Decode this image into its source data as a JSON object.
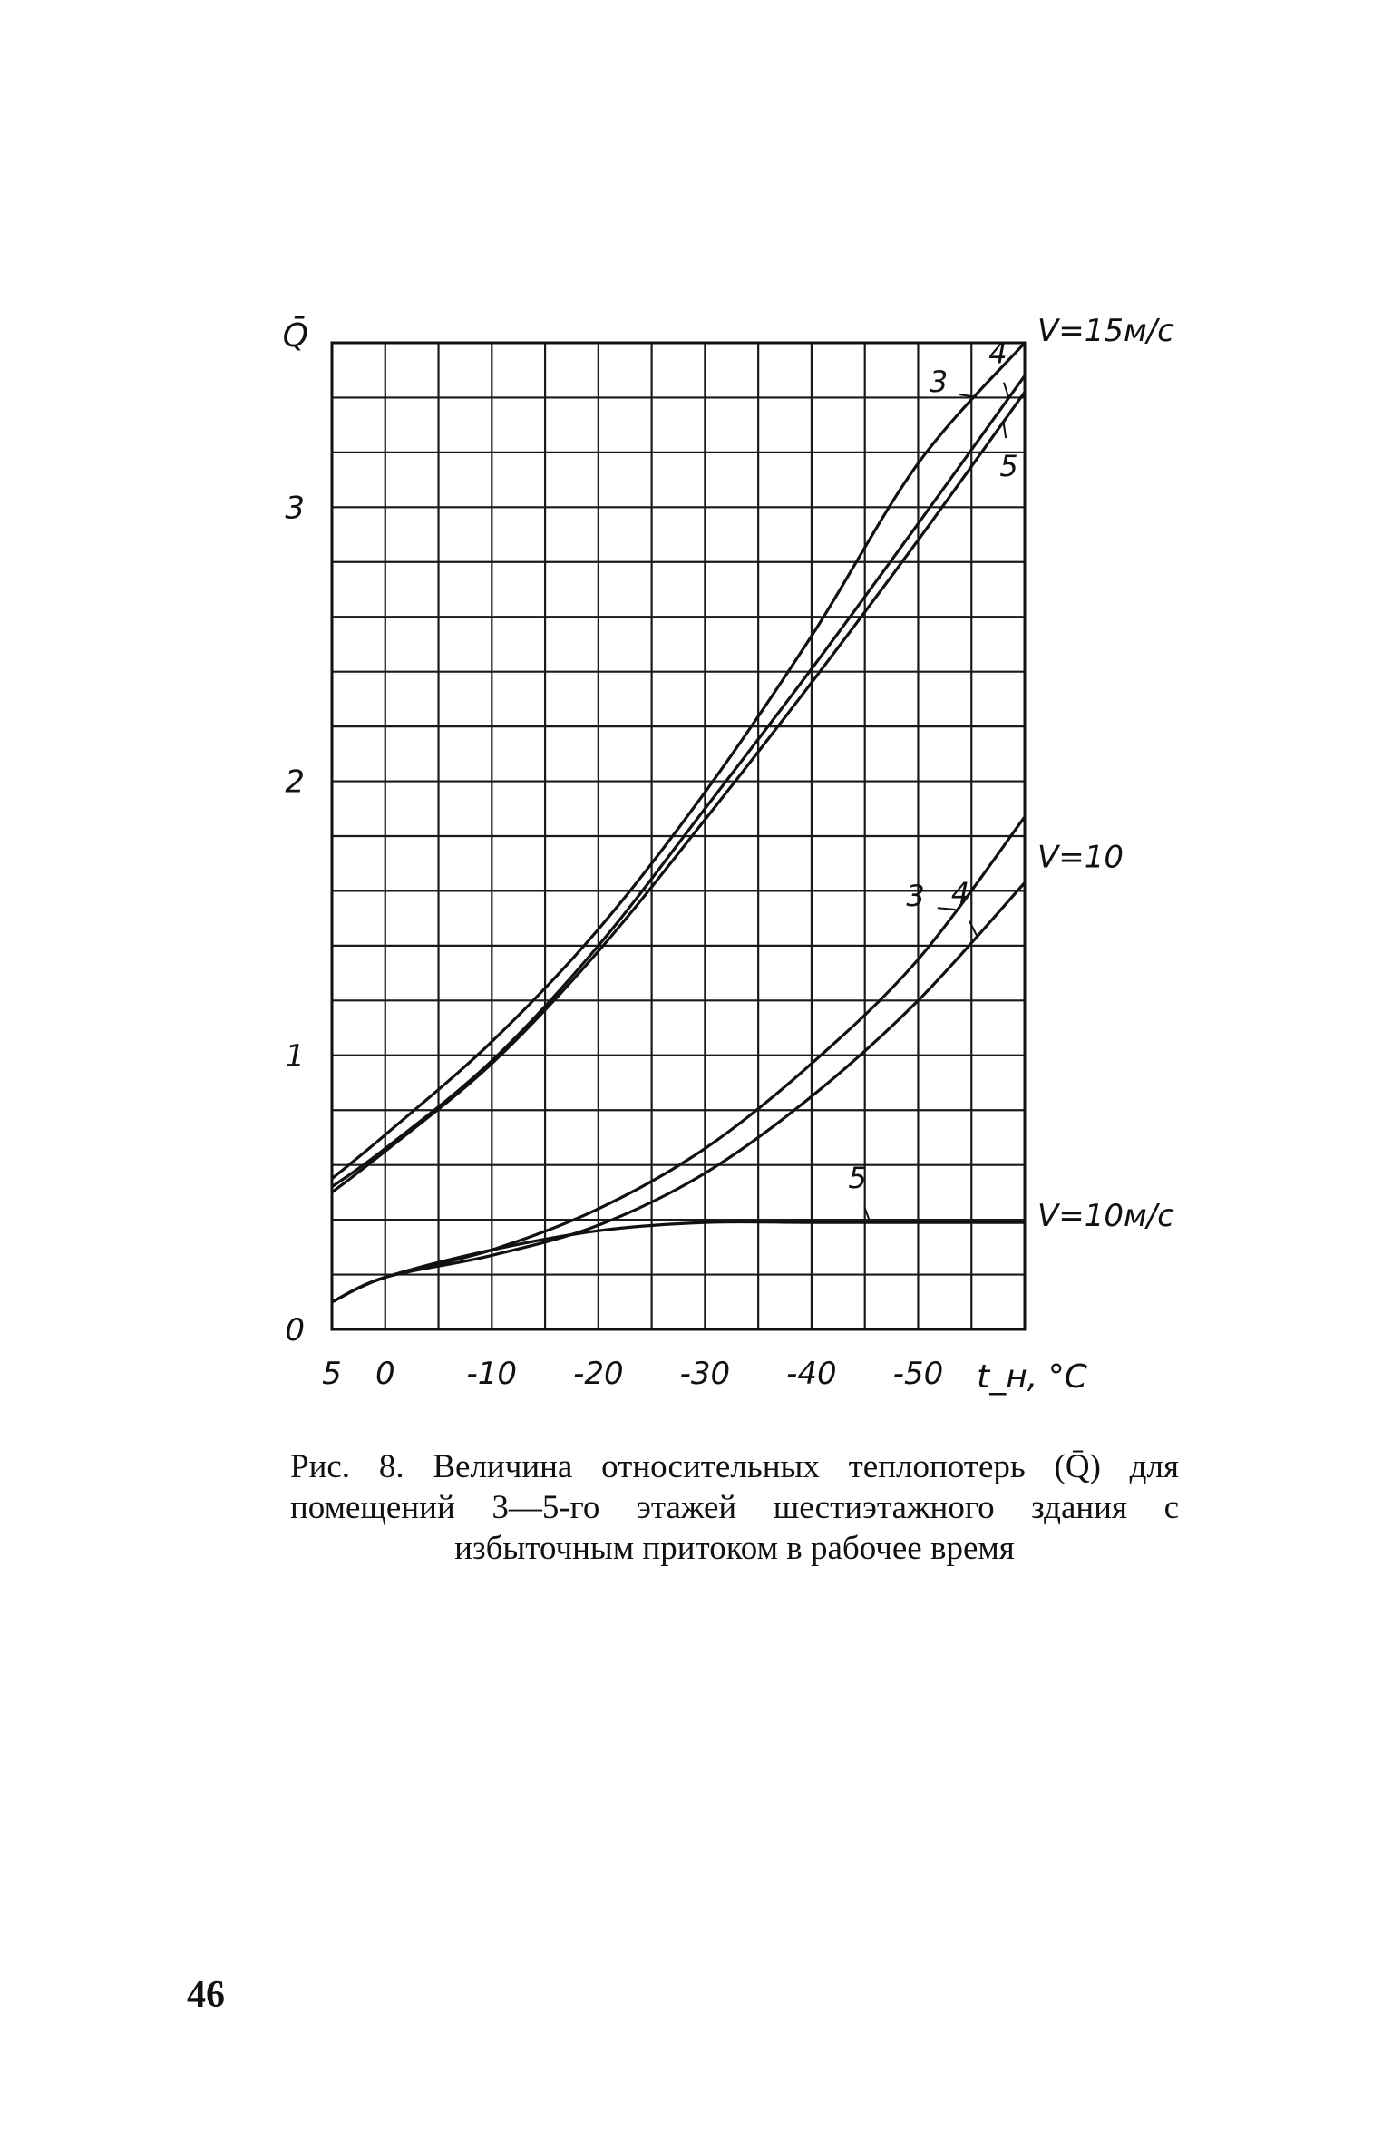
{
  "chart_data": {
    "type": "line",
    "title": "",
    "xlabel": "t_н, °C",
    "ylabel": "Q̄",
    "x_range": [
      5,
      -60
    ],
    "ylim": [
      0,
      3.6
    ],
    "grid": true,
    "x_ticks": [
      {
        "value": 5,
        "label": "5"
      },
      {
        "value": 0,
        "label": "0"
      },
      {
        "value": -10,
        "label": "-10"
      },
      {
        "value": -20,
        "label": "-20"
      },
      {
        "value": -30,
        "label": "-30"
      },
      {
        "value": -40,
        "label": "-40"
      },
      {
        "value": -50,
        "label": "-50"
      }
    ],
    "y_ticks": [
      {
        "value": 0,
        "label": "0"
      },
      {
        "value": 1,
        "label": "1"
      },
      {
        "value": 2,
        "label": "2"
      },
      {
        "value": 3,
        "label": "3"
      }
    ],
    "series": [
      {
        "name": "3",
        "group": "V=15м/с",
        "x": [
          5,
          0,
          -10,
          -20,
          -30,
          -40,
          -50,
          -60
        ],
        "y": [
          0.55,
          0.71,
          1.05,
          1.46,
          1.96,
          2.53,
          3.16,
          3.6
        ]
      },
      {
        "name": "4",
        "group": "V=15м/с",
        "x": [
          5,
          0,
          -10,
          -20,
          -30,
          -40,
          -50,
          -60
        ],
        "y": [
          0.52,
          0.66,
          0.98,
          1.4,
          1.9,
          2.41,
          2.94,
          3.48
        ]
      },
      {
        "name": "5",
        "group": "V=15м/с",
        "x": [
          5,
          0,
          -10,
          -20,
          -30,
          -40,
          -50,
          -60
        ],
        "y": [
          0.5,
          0.65,
          0.97,
          1.38,
          1.86,
          2.36,
          2.88,
          3.42
        ]
      },
      {
        "name": "3",
        "group": "V=10",
        "x": [
          5,
          0,
          -10,
          -20,
          -30,
          -40,
          -50,
          -60
        ],
        "y": [
          0.1,
          0.19,
          0.29,
          0.44,
          0.66,
          0.97,
          1.35,
          1.87
        ]
      },
      {
        "name": "4",
        "group": "V=10",
        "x": [
          5,
          0,
          -10,
          -20,
          -30,
          -40,
          -50,
          -60
        ],
        "y": [
          0.1,
          0.19,
          0.27,
          0.38,
          0.57,
          0.85,
          1.2,
          1.63
        ]
      },
      {
        "name": "5",
        "group": "V=10м/с",
        "x": [
          5,
          0,
          -10,
          -20,
          -30,
          -40,
          -50,
          -60
        ],
        "y": [
          0.1,
          0.19,
          0.29,
          0.36,
          0.39,
          0.39,
          0.39,
          0.39
        ]
      }
    ],
    "annotations": [
      "V=15м/с",
      "V=10",
      "V=10м/с"
    ]
  },
  "caption": "Рис. 8. Величина относительных теплопотерь (Q̄) для помещений 3—5-го этажей шестиэтажного здания с избыточным притоком в рабочее время",
  "page_number": "46"
}
